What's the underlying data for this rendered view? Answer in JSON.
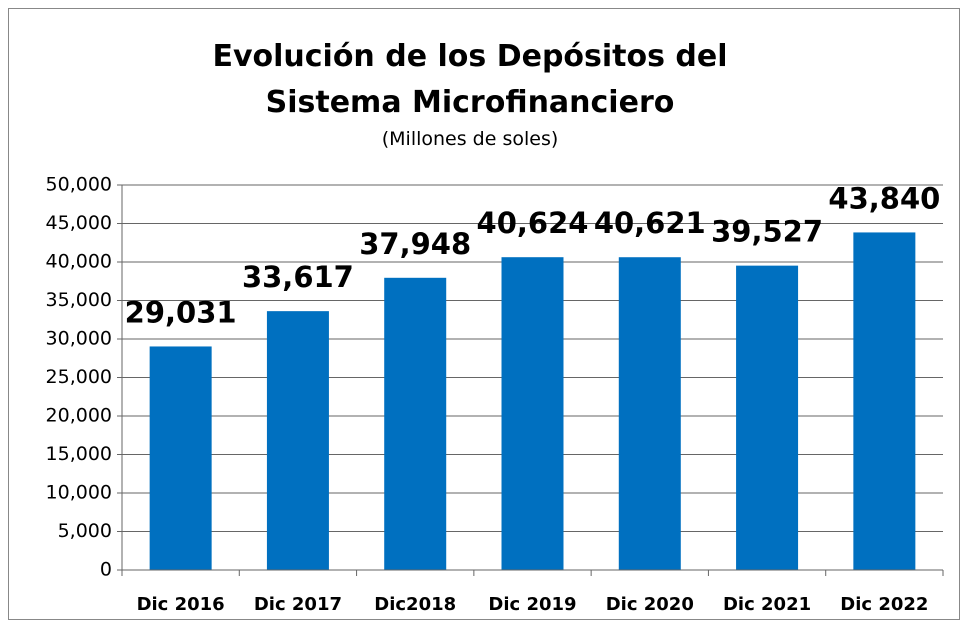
{
  "chart_data": {
    "type": "bar",
    "title": "Evolución de los Depósitos del Sistema Microfinanciero",
    "subtitle": "(Millones de soles)",
    "categories": [
      "Dic 2016",
      "Dic 2017",
      "Dic2018",
      "Dic 2019",
      "Dic 2020",
      "Dic 2021",
      "Dic 2022"
    ],
    "values": [
      29031,
      33617,
      37948,
      40624,
      40621,
      39527,
      43840
    ],
    "value_labels": [
      "29,031",
      "33,617",
      "37,948",
      "40,624",
      "40,621",
      "39,527",
      "43,840"
    ],
    "color": "#0070c0",
    "ylim": [
      0,
      50000
    ],
    "yticks": [
      0,
      {
        "value": 5000,
        "label": "5,000"
      },
      {
        "value": 10000,
        "label": "10,000"
      },
      {
        "value": 15000,
        "label": "15,000"
      },
      {
        "value": 20000,
        "label": "20,000"
      },
      {
        "value": 25000,
        "label": "25,000"
      },
      {
        "value": 30000,
        "label": "30,000"
      },
      {
        "value": 35000,
        "label": "35,000"
      },
      {
        "value": 40000,
        "label": "40,000"
      },
      {
        "value": 45000,
        "label": "45,000"
      },
      {
        "value": 50000,
        "label": "50,000"
      }
    ],
    "grid": true
  }
}
